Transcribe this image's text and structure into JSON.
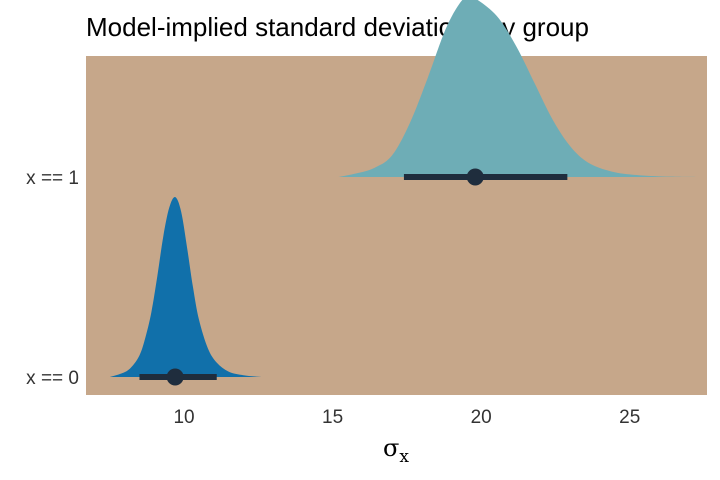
{
  "chart_data": {
    "type": "density",
    "title": "Model-implied standard deviations by group",
    "xlabel": "σ",
    "xlabel_subscript": "x",
    "xlim": [
      6.7,
      27.6
    ],
    "x_ticks": [
      10,
      15,
      20,
      25
    ],
    "grid": false,
    "legend": "none",
    "groups": [
      {
        "label": "x == 0",
        "color": "#1170aa",
        "point": 9.7,
        "interval": [
          8.5,
          11.1
        ],
        "density": {
          "x": [
            7.5,
            7.9,
            8.2,
            8.5,
            8.7,
            8.9,
            9.1,
            9.3,
            9.5,
            9.7,
            9.9,
            10.1,
            10.3,
            10.5,
            10.8,
            11.1,
            11.5,
            12.0,
            12.6
          ],
          "y": [
            0.0,
            0.02,
            0.05,
            0.12,
            0.22,
            0.36,
            0.56,
            0.78,
            0.94,
            1.0,
            0.92,
            0.72,
            0.5,
            0.32,
            0.16,
            0.08,
            0.03,
            0.01,
            0.0
          ]
        }
      },
      {
        "label": "x == 1",
        "color": "#6eadb6",
        "point": 19.8,
        "interval": [
          17.4,
          22.9
        ],
        "density": {
          "x": [
            15.2,
            15.8,
            16.4,
            17.0,
            17.6,
            18.2,
            18.8,
            19.3,
            19.6,
            20.0,
            20.6,
            21.2,
            21.8,
            22.4,
            23.0,
            23.6,
            24.4,
            25.3,
            26.4,
            27.4
          ],
          "y": [
            0.0,
            0.02,
            0.05,
            0.12,
            0.3,
            0.55,
            0.82,
            0.97,
            1.0,
            0.97,
            0.88,
            0.72,
            0.52,
            0.32,
            0.17,
            0.08,
            0.03,
            0.01,
            0.002,
            0.0
          ]
        }
      }
    ],
    "colors": {
      "panel_background": "#c6a78a",
      "interval": "#1f2d3d"
    }
  }
}
